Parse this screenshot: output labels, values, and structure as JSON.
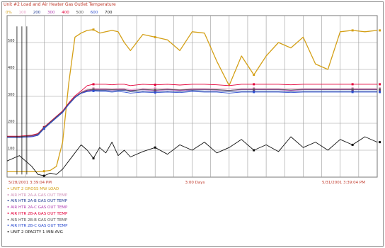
{
  "header": {
    "title": "Unit #2 Load and Air Heater Gas Outlet Temperature",
    "top_scale": [
      "0%",
      "100",
      "200",
      "300",
      "400",
      "500",
      "600",
      "700"
    ]
  },
  "chart_data": {
    "type": "line",
    "title": "Unit #2 Load and Air Heater Gas Outlet Temperature",
    "x_start_label": "5/28/2001 3:39:04 PM",
    "x_mid_label": "3:00 Days",
    "x_end_label": "5/31/2001 3:39:04 PM",
    "y_tick_labels": [
      "500",
      "400",
      "300",
      "200",
      "100"
    ],
    "x": [
      0,
      0.1,
      0.2,
      0.25,
      0.3,
      0.35,
      0.4,
      0.45,
      0.5,
      0.55,
      0.6,
      0.65,
      0.7,
      0.75,
      0.8,
      0.85,
      0.9,
      0.95,
      1.0,
      1.1,
      1.2,
      1.3,
      1.4,
      1.5,
      1.6,
      1.7,
      1.8,
      1.9,
      2.0,
      2.1,
      2.2,
      2.3,
      2.4,
      2.5,
      2.6,
      2.7,
      2.8,
      2.9,
      3.0
    ],
    "series": [
      {
        "name": "UNIT 2 GROSS MW LOAD",
        "color": "#d4a017",
        "values": [
          20,
          20,
          20,
          20,
          22,
          25,
          40,
          130,
          350,
          520,
          535,
          545,
          548,
          535,
          540,
          545,
          540,
          500,
          470,
          530,
          520,
          510,
          470,
          540,
          535,
          430,
          340,
          450,
          380,
          450,
          500,
          480,
          520,
          420,
          400,
          540,
          545,
          540,
          545
        ]
      },
      {
        "name": "AIR HTR 2A-A GAS OUT TEMP",
        "color": "#e9a0c8",
        "values": [
          150,
          150,
          155,
          160,
          185,
          205,
          225,
          245,
          275,
          300,
          315,
          328,
          330,
          330,
          330,
          330,
          330,
          330,
          325,
          330,
          330,
          330,
          325,
          330,
          330,
          330,
          328,
          330,
          330,
          330,
          330,
          330,
          330,
          330,
          330,
          330,
          330,
          330,
          330
        ]
      },
      {
        "name": "AIR HTR 2A-B GAS OUT TEMP",
        "color": "#1f3a93",
        "values": [
          148,
          148,
          150,
          155,
          180,
          200,
          220,
          240,
          270,
          295,
          312,
          320,
          322,
          322,
          322,
          320,
          322,
          322,
          318,
          320,
          318,
          320,
          318,
          322,
          320,
          320,
          318,
          320,
          320,
          320,
          320,
          318,
          320,
          320,
          320,
          320,
          320,
          320,
          320
        ]
      },
      {
        "name": "AIR HTR 2A-C GAS OUT TEMP",
        "color": "#b03ab0",
        "values": [
          149,
          149,
          152,
          158,
          183,
          203,
          223,
          243,
          272,
          297,
          313,
          322,
          325,
          325,
          325,
          324,
          325,
          325,
          322,
          325,
          322,
          325,
          322,
          325,
          325,
          324,
          322,
          325,
          325,
          325,
          325,
          322,
          325,
          325,
          325,
          325,
          325,
          325,
          325
        ]
      },
      {
        "name": "AIR HTR 2B-A GAS OUT TEMP",
        "color": "#e4003a",
        "values": [
          152,
          152,
          156,
          162,
          186,
          206,
          226,
          246,
          276,
          302,
          320,
          340,
          345,
          345,
          345,
          343,
          345,
          345,
          340,
          345,
          343,
          345,
          342,
          345,
          345,
          343,
          340,
          345,
          345,
          345,
          345,
          343,
          345,
          345,
          345,
          345,
          345,
          345,
          345
        ]
      },
      {
        "name": "AIR HTR 2B-B GAS OUT TEMP",
        "color": "#555555",
        "values": [
          150,
          150,
          154,
          160,
          184,
          204,
          224,
          244,
          273,
          298,
          314,
          324,
          326,
          326,
          326,
          325,
          326,
          326,
          320,
          326,
          324,
          326,
          324,
          326,
          326,
          325,
          322,
          326,
          326,
          326,
          326,
          324,
          326,
          326,
          326,
          326,
          326,
          326,
          326
        ]
      },
      {
        "name": "AIR HTR 2B-C GAS OUT TEMP",
        "color": "#3050d0",
        "values": [
          147,
          147,
          150,
          156,
          181,
          201,
          221,
          241,
          271,
          296,
          311,
          318,
          320,
          318,
          318,
          316,
          318,
          316,
          312,
          316,
          314,
          316,
          314,
          318,
          316,
          316,
          312,
          316,
          316,
          316,
          316,
          314,
          316,
          316,
          316,
          316,
          316,
          316,
          316
        ]
      },
      {
        "name": "UNIT 2 OPACITY 1 MIN AVG",
        "color": "#111111",
        "values": [
          60,
          80,
          40,
          10,
          5,
          15,
          10,
          30,
          60,
          90,
          120,
          100,
          70,
          110,
          90,
          130,
          80,
          100,
          75,
          95,
          110,
          85,
          120,
          100,
          130,
          90,
          110,
          140,
          100,
          120,
          95,
          150,
          110,
          130,
          100,
          140,
          120,
          150,
          130
        ]
      }
    ],
    "ylim": [
      0,
      600
    ],
    "grid": true,
    "legend_position": "bottom-left"
  }
}
